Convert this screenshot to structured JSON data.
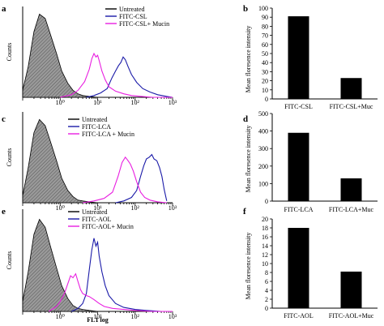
{
  "colors": {
    "untreated_fill": "#9a9a9a",
    "untreated_hatch": "#5a5a5a",
    "fitc_line": "#1a1aa8",
    "mucin_line": "#e81ee0",
    "bar_fill": "#000000"
  },
  "shared": {
    "hist_xlabel": "FL1 log",
    "hist_ylabel": "Counts",
    "hist_xticks": [
      "10⁰",
      "10¹",
      "10²",
      "10³"
    ],
    "bar_ylabel": "Mean floresence intensity"
  },
  "chart_data": [
    {
      "panel": "a",
      "type": "area",
      "xscale": "log",
      "xlim": [
        0.1,
        1000
      ],
      "xlabel": "",
      "legend_position": "top-right",
      "series": [
        {
          "name": "Untreated",
          "style": "filled-gray",
          "x": [
            0.1,
            0.14,
            0.2,
            0.28,
            0.4,
            0.55,
            0.8,
            1.1,
            1.6,
            2.2,
            3,
            4,
            6,
            10
          ],
          "y": [
            0.08,
            0.35,
            0.75,
            0.95,
            0.9,
            0.72,
            0.5,
            0.3,
            0.16,
            0.08,
            0.04,
            0.02,
            0.01,
            0.0
          ]
        },
        {
          "name": "FITC-CSL",
          "style": "blue-line",
          "x": [
            5,
            8,
            12,
            18,
            24,
            30,
            36,
            42,
            48,
            55,
            65,
            80,
            110,
            160,
            250,
            400,
            700,
            1000
          ],
          "y": [
            0.0,
            0.02,
            0.05,
            0.1,
            0.22,
            0.3,
            0.36,
            0.4,
            0.46,
            0.43,
            0.35,
            0.26,
            0.17,
            0.1,
            0.06,
            0.03,
            0.01,
            0.0
          ]
        },
        {
          "name": "FITC-CSL+ Mucin",
          "style": "magenta-line",
          "x": [
            1,
            2,
            3,
            4.5,
            6,
            7,
            8,
            9,
            10,
            11,
            13,
            16,
            20,
            30,
            50,
            80,
            150,
            300,
            1000
          ],
          "y": [
            0.0,
            0.03,
            0.08,
            0.18,
            0.32,
            0.44,
            0.5,
            0.46,
            0.48,
            0.42,
            0.3,
            0.2,
            0.12,
            0.07,
            0.04,
            0.02,
            0.01,
            0.0,
            0.0
          ]
        }
      ]
    },
    {
      "panel": "b",
      "type": "bar",
      "categories": [
        "FITC-CSL",
        "FITC-CSL+Muc"
      ],
      "values": [
        91,
        23
      ],
      "ylim": [
        0,
        100
      ],
      "yticks": [
        0,
        10,
        20,
        30,
        40,
        50,
        60,
        70,
        80,
        90,
        100
      ]
    },
    {
      "panel": "c",
      "type": "area",
      "xscale": "log",
      "xlim": [
        0.1,
        1000
      ],
      "xlabel": "",
      "legend_position": "top-left",
      "series": [
        {
          "name": "Untreated",
          "style": "filled-gray",
          "x": [
            0.1,
            0.14,
            0.2,
            0.28,
            0.4,
            0.55,
            0.8,
            1.1,
            1.6,
            2.2,
            3,
            4,
            6,
            10
          ],
          "y": [
            0.08,
            0.4,
            0.8,
            0.95,
            0.88,
            0.7,
            0.48,
            0.28,
            0.14,
            0.07,
            0.03,
            0.02,
            0.01,
            0.0
          ]
        },
        {
          "name": "FITC-LCA",
          "style": "blue-line",
          "x": [
            30,
            50,
            80,
            110,
            140,
            170,
            200,
            240,
            280,
            320,
            380,
            450,
            520,
            600,
            700
          ],
          "y": [
            0.0,
            0.02,
            0.06,
            0.14,
            0.3,
            0.42,
            0.5,
            0.52,
            0.55,
            0.5,
            0.48,
            0.4,
            0.3,
            0.15,
            0.02
          ]
        },
        {
          "name": "FITC-LCA + Mucin",
          "style": "magenta-line",
          "x": [
            4,
            8,
            15,
            25,
            35,
            45,
            55,
            65,
            75,
            90,
            110,
            140,
            180,
            250,
            400,
            700
          ],
          "y": [
            0.0,
            0.02,
            0.05,
            0.12,
            0.3,
            0.46,
            0.52,
            0.48,
            0.44,
            0.36,
            0.24,
            0.12,
            0.06,
            0.03,
            0.01,
            0.0
          ]
        }
      ]
    },
    {
      "panel": "d",
      "type": "bar",
      "categories": [
        "FITC-LCA",
        "FITC-LCA+Muc"
      ],
      "values": [
        390,
        130
      ],
      "ylim": [
        0,
        500
      ],
      "yticks": [
        0,
        100,
        200,
        300,
        400,
        500
      ]
    },
    {
      "panel": "e",
      "type": "area",
      "xscale": "log",
      "xlim": [
        0.1,
        1000
      ],
      "xlabel": "FL1 log",
      "legend_position": "top-right",
      "series": [
        {
          "name": "Untreated",
          "style": "filled-gray",
          "x": [
            0.1,
            0.14,
            0.2,
            0.28,
            0.4,
            0.55,
            0.8,
            1.1,
            1.6,
            2.2,
            3,
            4,
            6,
            10
          ],
          "y": [
            0.1,
            0.4,
            0.78,
            0.93,
            0.85,
            0.66,
            0.44,
            0.26,
            0.13,
            0.06,
            0.03,
            0.02,
            0.01,
            0.0
          ]
        },
        {
          "name": "FITC-AOL",
          "style": "blue-line",
          "x": [
            2,
            3,
            4,
            5,
            6,
            7,
            8,
            9,
            10,
            11,
            13,
            16,
            20,
            30,
            50,
            100,
            200,
            500,
            1000
          ],
          "y": [
            0.0,
            0.03,
            0.08,
            0.18,
            0.42,
            0.62,
            0.74,
            0.66,
            0.7,
            0.56,
            0.4,
            0.26,
            0.16,
            0.08,
            0.04,
            0.02,
            0.01,
            0.0,
            0.0
          ]
        },
        {
          "name": "FITC-AOL+ Mucin",
          "style": "magenta-line",
          "x": [
            0.5,
            0.8,
            1,
            1.3,
            1.6,
            1.9,
            2.2,
            2.6,
            3,
            3.5,
            4,
            5,
            6,
            8,
            11,
            15,
            25,
            50,
            100,
            300,
            1000
          ],
          "y": [
            0.0,
            0.05,
            0.1,
            0.18,
            0.28,
            0.36,
            0.34,
            0.38,
            0.3,
            0.22,
            0.18,
            0.16,
            0.15,
            0.12,
            0.08,
            0.05,
            0.03,
            0.02,
            0.01,
            0.0,
            0.0
          ]
        }
      ]
    },
    {
      "panel": "f",
      "type": "bar",
      "categories": [
        "FITC-AOL",
        "FITC-AOL+Muc"
      ],
      "values": [
        18,
        8.2
      ],
      "ylim": [
        0,
        20
      ],
      "yticks": [
        0,
        2,
        4,
        6,
        8,
        10,
        12,
        14,
        16,
        18,
        20
      ]
    }
  ]
}
